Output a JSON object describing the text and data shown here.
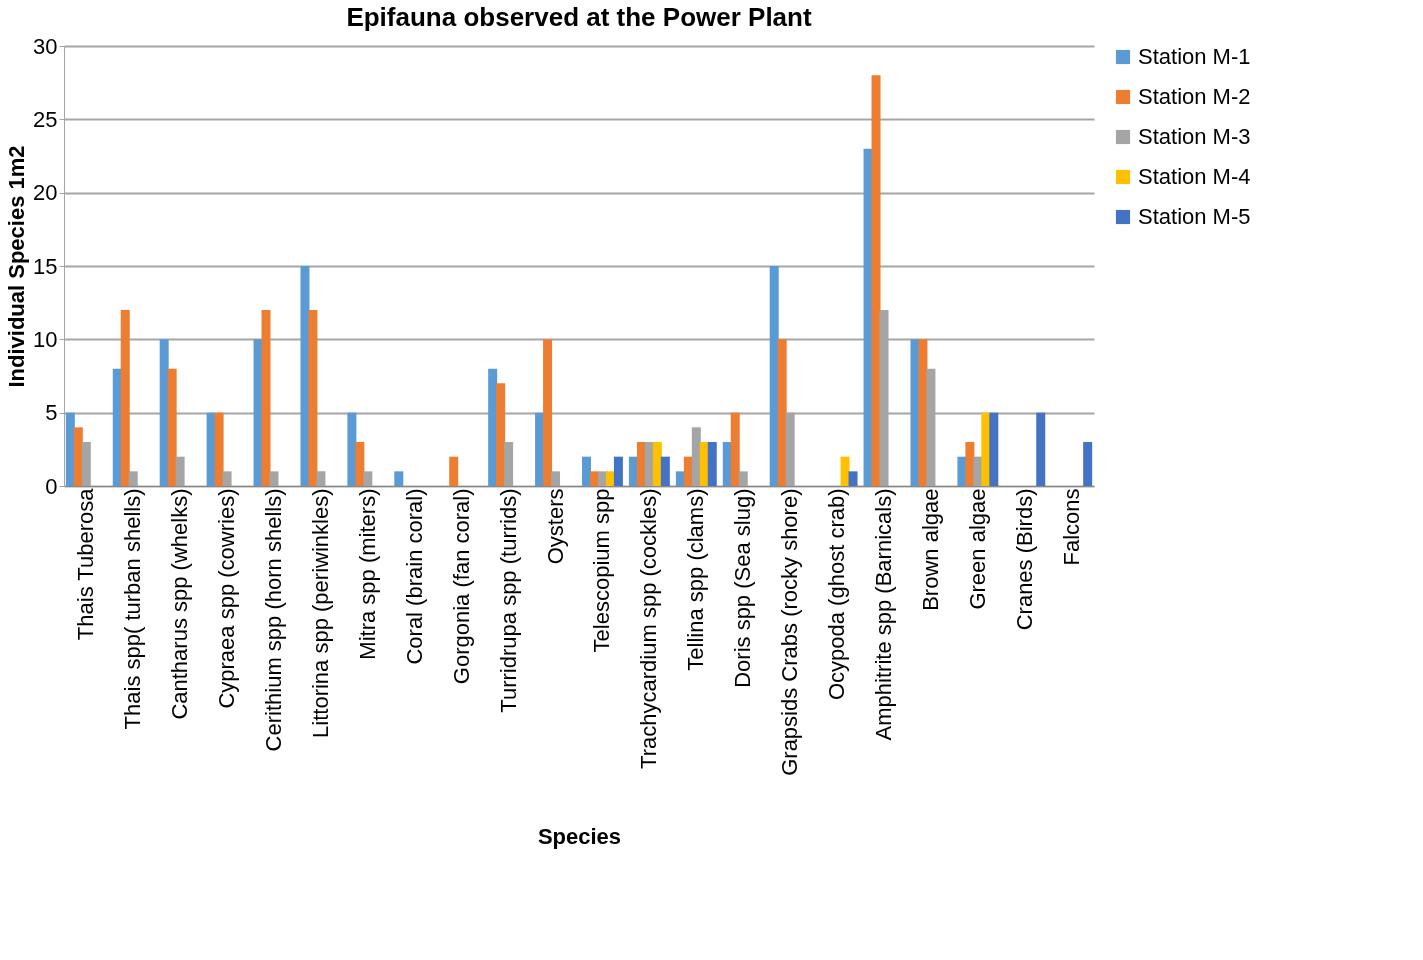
{
  "chart_data": {
    "type": "bar",
    "title": "Epifauna observed at the Power Plant",
    "xlabel": "Species",
    "ylabel": "Individual Species 1m2",
    "categories": [
      "Thais Tuberosa",
      "Thais spp( turban shells)",
      "Cantharus spp (whelks)",
      "Cypraea spp (cowries)",
      "Cerithium spp (horn shells)",
      "Littorina spp (periwinkles)",
      "Mitra spp (miters)",
      "Coral (brain coral)",
      "Gorgonia (fan coral)",
      "Turridrupa spp (turrids)",
      "Oysters",
      "Telescopium spp",
      "Trachycardium  spp (cockles)",
      "Tellina spp (clams)",
      "Doris spp (Sea slug)",
      "Grapsids Crabs (rocky shore)",
      "Ocypoda (ghost crab)",
      "Amphitrite spp (Barnicals)",
      "Brown algae",
      "Green algae",
      "Cranes (Birds)",
      "Falcons"
    ],
    "series": [
      {
        "name": "Station M-1",
        "color": "#5b9bd5",
        "values": [
          5,
          8,
          10,
          5,
          10,
          15,
          5,
          1,
          null,
          8,
          5,
          2,
          2,
          1,
          3,
          15,
          null,
          23,
          10,
          2,
          null,
          null
        ]
      },
      {
        "name": "Station M-2",
        "color": "#ed7d31",
        "values": [
          4,
          12,
          8,
          5,
          12,
          12,
          3,
          null,
          2,
          7,
          10,
          1,
          3,
          2,
          5,
          10,
          null,
          28,
          10,
          3,
          null,
          null
        ]
      },
      {
        "name": "Station M-3",
        "color": "#a5a5a5",
        "values": [
          3,
          1,
          2,
          1,
          1,
          1,
          1,
          null,
          null,
          3,
          1,
          1,
          3,
          4,
          1,
          5,
          null,
          12,
          8,
          2,
          null,
          null
        ]
      },
      {
        "name": "Station M-4",
        "color": "#ffc000",
        "values": [
          null,
          null,
          null,
          null,
          null,
          null,
          null,
          null,
          null,
          null,
          null,
          1,
          3,
          3,
          null,
          null,
          2,
          null,
          null,
          5,
          null,
          null
        ]
      },
      {
        "name": "Station M-5",
        "color": "#4472c4",
        "values": [
          null,
          null,
          null,
          null,
          null,
          null,
          null,
          null,
          null,
          null,
          null,
          2,
          2,
          3,
          null,
          null,
          1,
          null,
          null,
          5,
          5,
          3
        ]
      }
    ],
    "ylim": [
      0,
      30
    ],
    "yticks": [
      0,
      5,
      10,
      15,
      20,
      25,
      30
    ],
    "grid": "y",
    "legend": "top right"
  }
}
